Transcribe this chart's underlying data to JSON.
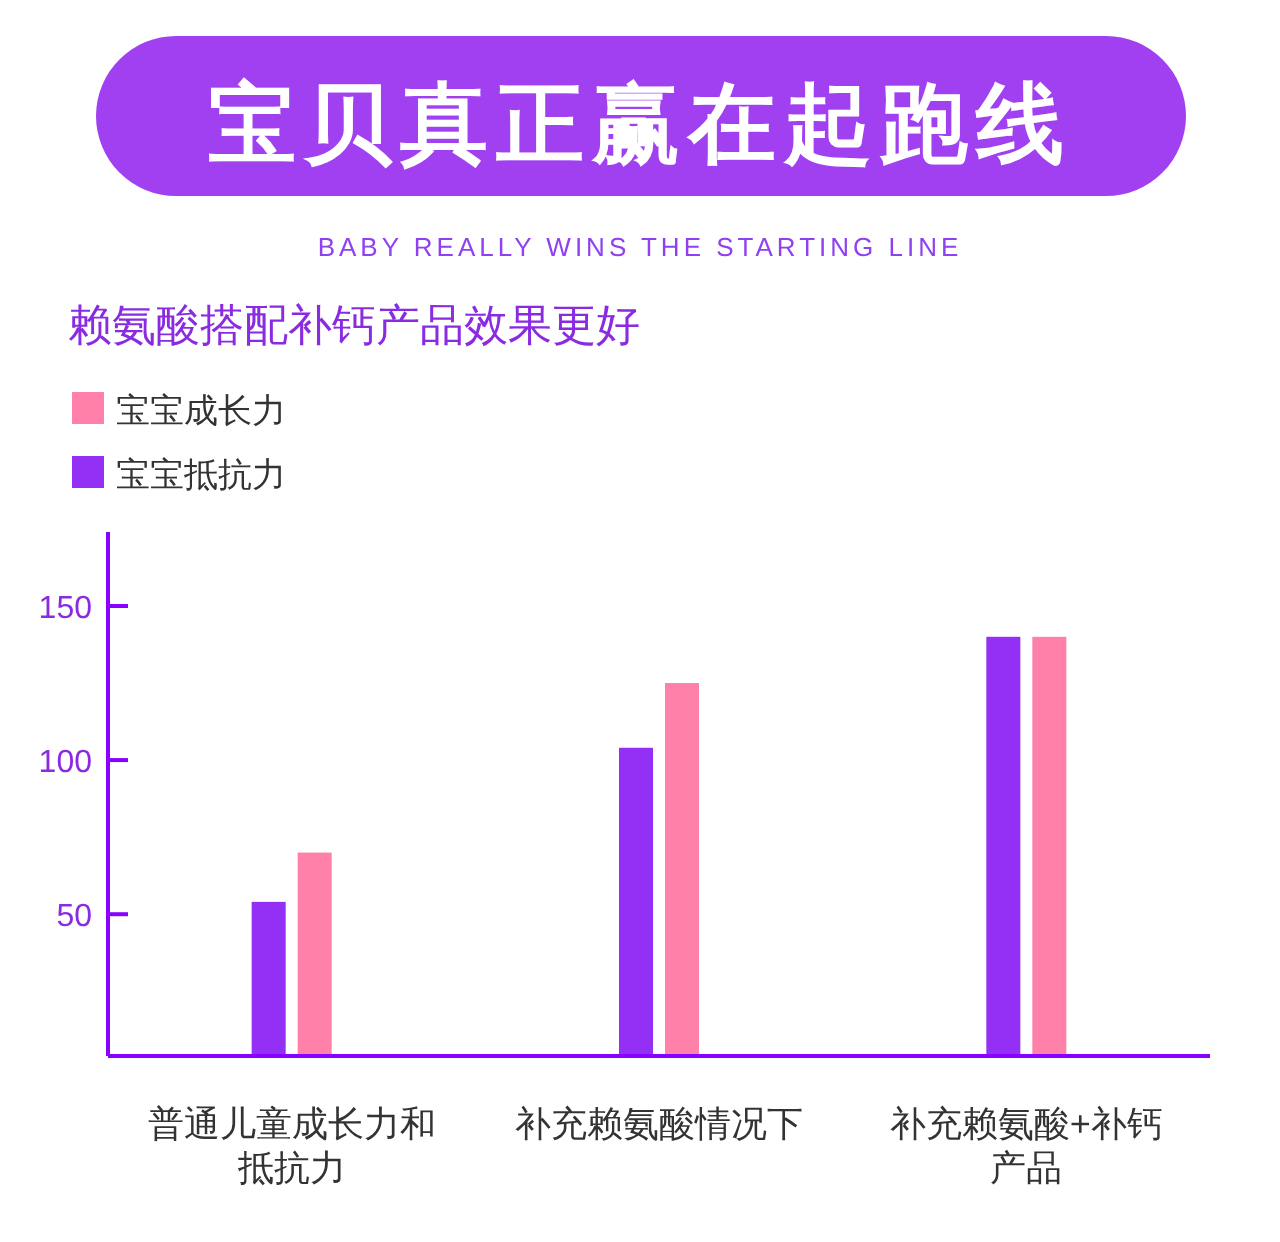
{
  "chart_data": {
    "type": "bar",
    "title": "宝贝真正赢在起跑线",
    "subtitle": "BABY REALLY WINS THE STARTING LINE",
    "annotations": [
      "赖氨酸搭配补钙产品效果更好"
    ],
    "categories": [
      "普通儿童成长力和抵抗力",
      "补充赖氨酸情况下",
      "补充赖氨酸+补钙产品"
    ],
    "series": [
      {
        "name": "宝宝抵抗力",
        "color": "#9430f5",
        "values": [
          54,
          104,
          140
        ]
      },
      {
        "name": "宝宝成长力",
        "color": "#ff80a8",
        "values": [
          70,
          125,
          140
        ]
      }
    ],
    "ylim": [
      4,
      174
    ],
    "yticks": [
      50,
      100,
      150
    ],
    "legend": "top left",
    "grid": false
  }
}
